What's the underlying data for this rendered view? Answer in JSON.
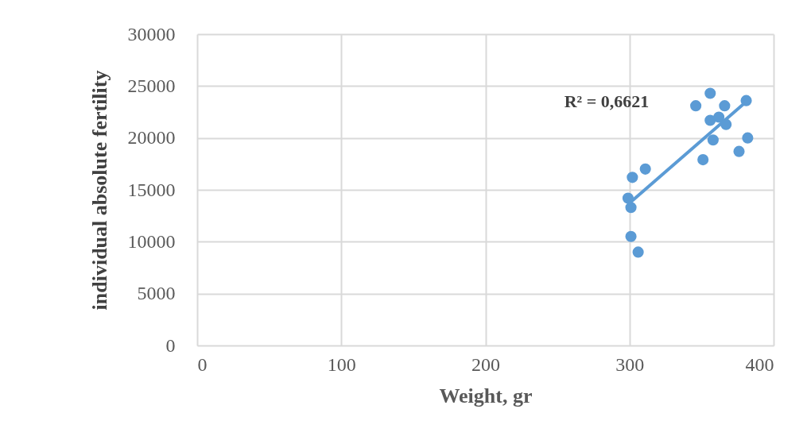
{
  "chart_data": {
    "type": "scatter",
    "xlabel": "Weight, gr",
    "ylabel": "individual absolute fertility",
    "xlim": [
      0,
      400
    ],
    "xticks": [
      0,
      100,
      200,
      300,
      400
    ],
    "ylim": [
      0,
      30000
    ],
    "yticks": [
      0,
      5000,
      10000,
      15000,
      20000,
      25000,
      30000
    ],
    "grid": true,
    "annotations": [
      "R² = 0,6621"
    ],
    "series": [
      {
        "marker": "circle",
        "color": "#5b9bd5",
        "x": [
          356,
          346,
          366,
          381,
          356,
          362,
          367,
          358,
          382,
          376,
          351,
          311,
          302,
          299,
          301,
          301,
          306
        ],
        "values": [
          24300,
          23100,
          23100,
          23600,
          21700,
          22000,
          21300,
          19800,
          20000,
          18700,
          17900,
          17000,
          16200,
          14200,
          13300,
          10500,
          9000
        ]
      },
      {
        "type": "line",
        "marker": "none",
        "color": "#5b9bd5",
        "x": [
          299,
          381
        ],
        "values": [
          13600,
          23500
        ]
      }
    ]
  }
}
